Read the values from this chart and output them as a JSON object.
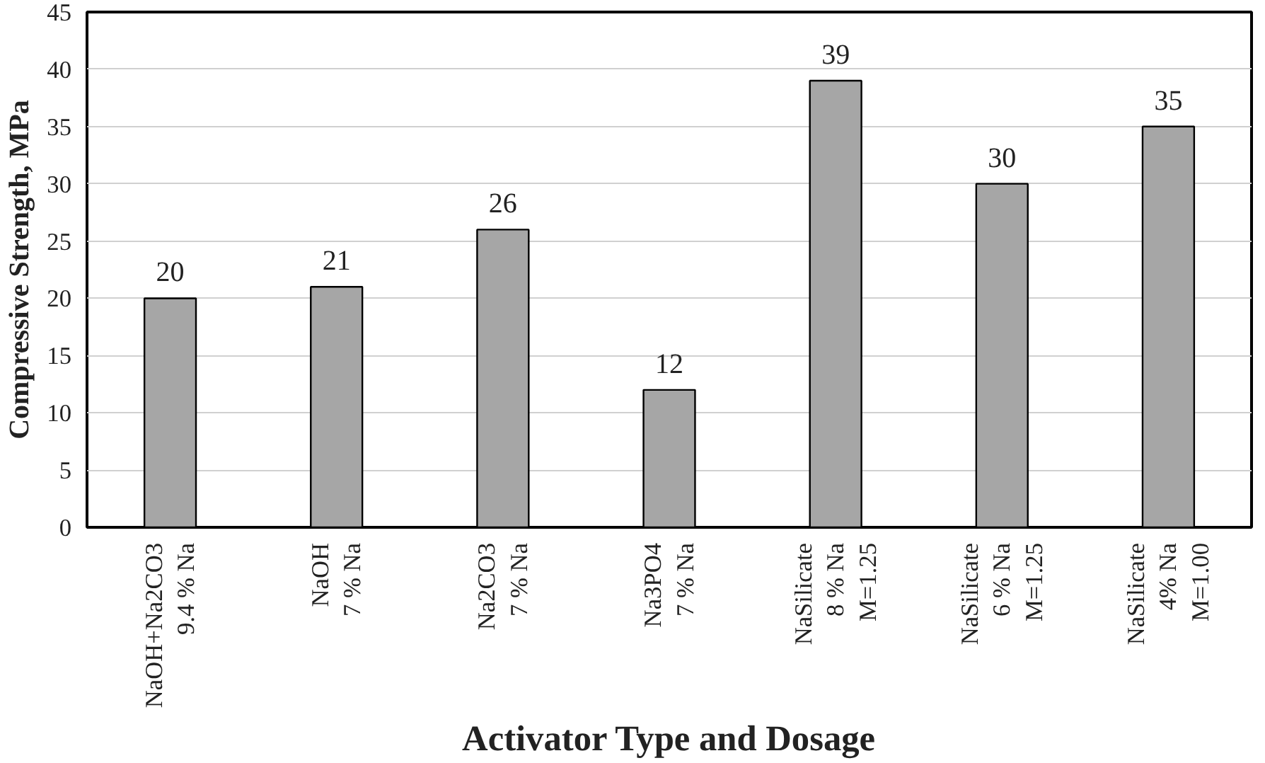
{
  "chart_data": {
    "type": "bar",
    "xlabel": "Activator Type and Dosage",
    "ylabel": "Compressive Strength, MPa",
    "categories": [
      "NaOH+Na2CO3\n9.4 % Na",
      "NaOH\n7 % Na",
      "Na2CO3\n7 % Na",
      "Na3PO4\n7 % Na",
      "NaSilicate\n8 % Na\nM=1.25",
      "NaSilicate\n6 % Na\nM=1.25",
      "NaSilicate\n4% Na\nM=1.00"
    ],
    "values": [
      20,
      21,
      26,
      12,
      39,
      30,
      35
    ],
    "color": "#a6a6a6",
    "ylim": [
      0,
      45
    ],
    "yticks": [
      0,
      5,
      10,
      15,
      20,
      25,
      30,
      35,
      40,
      45
    ],
    "grid": "y",
    "data_labels": true
  }
}
